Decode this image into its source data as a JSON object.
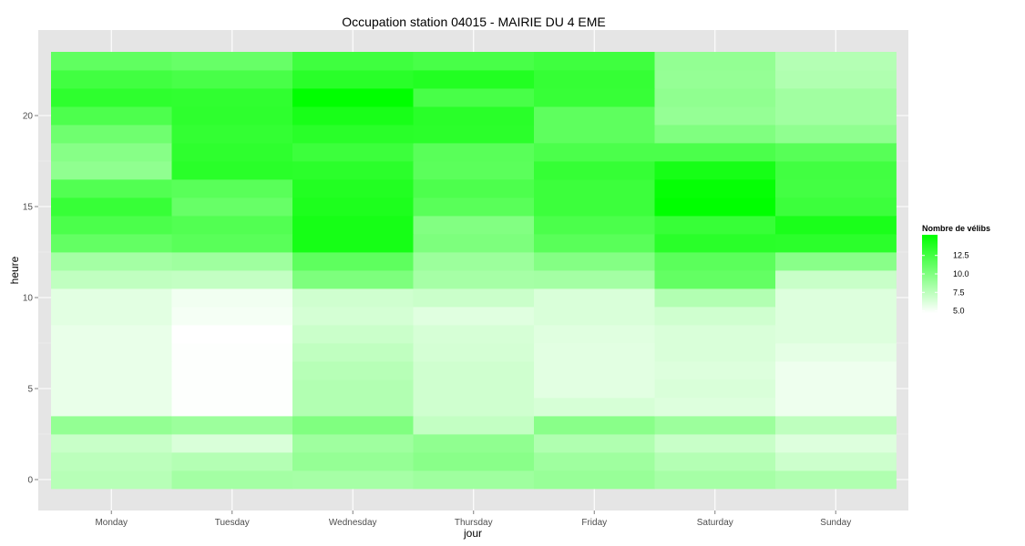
{
  "chart_data": {
    "type": "heatmap",
    "title": "Occupation station 04015 - MAIRIE DU 4 EME",
    "xlabel": "jour",
    "ylabel": "heure",
    "x_categories": [
      "Monday",
      "Tuesday",
      "Wednesday",
      "Thursday",
      "Friday",
      "Saturday",
      "Sunday"
    ],
    "y_values": [
      0,
      1,
      2,
      3,
      4,
      5,
      6,
      7,
      8,
      9,
      10,
      11,
      12,
      13,
      14,
      15,
      16,
      17,
      18,
      19,
      20,
      21,
      22,
      23
    ],
    "y_ticks": [
      0,
      5,
      10,
      15,
      20
    ],
    "ylim": [
      -0.5,
      23.5
    ],
    "legend": {
      "title": "Nombre de vélibs",
      "breaks": [
        12.5,
        10.0,
        7.5,
        5.0
      ],
      "break_labels": [
        "12.5",
        "10.0",
        "7.5",
        "5.0"
      ],
      "range": [
        4.7,
        15.3
      ],
      "low_color": "#ffffff",
      "high_color": "#00ff00"
    },
    "values": [
      [
        7.7,
        8.5,
        8.4,
        8.7,
        9.0,
        8.4,
        8.0
      ],
      [
        7.5,
        7.8,
        9.1,
        9.6,
        8.7,
        7.8,
        6.8
      ],
      [
        7.0,
        6.3,
        8.7,
        9.3,
        8.0,
        7.0,
        6.1
      ],
      [
        9.2,
        8.8,
        10.0,
        7.2,
        9.6,
        8.8,
        7.4
      ],
      [
        5.6,
        4.8,
        7.9,
        6.7,
        6.4,
        6.1,
        5.4
      ],
      [
        5.6,
        4.8,
        7.9,
        6.7,
        5.9,
        6.3,
        5.4
      ],
      [
        5.6,
        4.8,
        7.7,
        6.7,
        5.9,
        6.1,
        5.4
      ],
      [
        5.6,
        4.8,
        7.3,
        6.5,
        5.9,
        6.3,
        5.8
      ],
      [
        5.6,
        4.7,
        6.9,
        6.4,
        6.0,
        6.3,
        6.1
      ],
      [
        5.9,
        5.1,
        6.5,
        6.0,
        6.3,
        6.7,
        6.1
      ],
      [
        5.9,
        5.3,
        6.7,
        6.9,
        6.3,
        7.9,
        6.1
      ],
      [
        7.3,
        7.2,
        10.1,
        8.4,
        8.5,
        11.2,
        7.0
      ],
      [
        8.5,
        8.7,
        11.4,
        8.8,
        9.8,
        11.5,
        9.6
      ],
      [
        11.2,
        11.6,
        14.4,
        10.1,
        11.6,
        13.6,
        13.5
      ],
      [
        12.2,
        11.9,
        14.4,
        9.9,
        12.2,
        13.0,
        14.2
      ],
      [
        13.0,
        11.0,
        14.1,
        11.6,
        12.8,
        15.3,
        12.8
      ],
      [
        11.9,
        11.6,
        13.9,
        12.1,
        12.8,
        15.1,
        12.5
      ],
      [
        9.3,
        13.6,
        13.5,
        11.5,
        13.1,
        14.4,
        12.6
      ],
      [
        9.7,
        13.4,
        12.8,
        11.6,
        12.2,
        12.2,
        11.7
      ],
      [
        10.7,
        13.2,
        13.6,
        13.5,
        11.4,
        10.0,
        9.3
      ],
      [
        12.1,
        13.4,
        14.3,
        13.6,
        11.4,
        9.1,
        8.6
      ],
      [
        13.4,
        13.3,
        15.3,
        12.3,
        13.0,
        9.3,
        8.6
      ],
      [
        12.6,
        12.3,
        13.6,
        13.9,
        13.1,
        9.1,
        8.0
      ],
      [
        11.3,
        11.0,
        12.7,
        12.3,
        12.7,
        9.2,
        7.8
      ]
    ],
    "grid": true
  }
}
